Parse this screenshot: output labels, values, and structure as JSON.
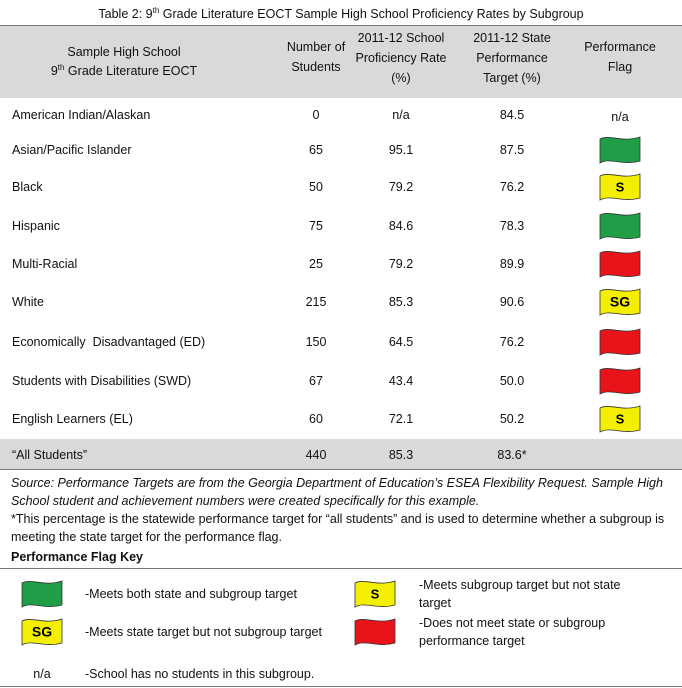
{
  "table": {
    "title": {
      "pre": "Table 2: 9",
      "sup": "th",
      "post": " Grade Literature EOCT Sample High School Proficiency Rates by Subgroup"
    },
    "header": [
      {
        "line1": "Sample High School",
        "line2_pre": "9",
        "line2_sup": "th",
        "line2_post": " Grade Literature EOCT"
      },
      [
        "Number of",
        "Students"
      ],
      [
        "2011-12 School",
        "Proficiency Rate",
        "(%)"
      ],
      [
        "2011-12 State",
        "Performance",
        "Target (%)"
      ],
      [
        "Performance",
        "Flag"
      ]
    ],
    "rows": [
      {
        "group": "American Indian/Alaskan",
        "students": "0",
        "rate": "n/a",
        "target": "84.5",
        "flag_text": "n/a"
      },
      {
        "group": "Asian/Pacific Islander",
        "students": "65",
        "rate": "95.1",
        "target": "87.5",
        "flag": {
          "color": "#1f9e47"
        }
      },
      {
        "group": "Black",
        "students": "50",
        "rate": "79.2",
        "target": "76.2",
        "flag": {
          "color": "#f4ee00",
          "label": "S"
        }
      },
      {
        "group": "Hispanic",
        "students": "75",
        "rate": "84.6",
        "target": "78.3",
        "flag": {
          "color": "#1f9e47"
        }
      },
      {
        "group": "Multi-Racial",
        "students": "25",
        "rate": "79.2",
        "target": "89.9",
        "flag": {
          "color": "#e8141a"
        }
      },
      {
        "group": "White",
        "students": "215",
        "rate": "85.3",
        "target": "90.6",
        "flag": {
          "color": "#f4ee00",
          "label": "SG"
        }
      },
      {
        "group": "Economically  Disadvantaged (ED)",
        "students": "150",
        "rate": "64.5",
        "target": "76.2",
        "flag": {
          "color": "#e8141a"
        }
      },
      {
        "group": "Students with Disabilities (SWD)",
        "students": "67",
        "rate": "43.4",
        "target": "50.0",
        "flag": {
          "color": "#e8141a"
        }
      },
      {
        "group": "English Learners (EL)",
        "students": "60",
        "rate": "72.1",
        "target": "50.2",
        "flag": {
          "color": "#f4ee00",
          "label": "S"
        }
      },
      {
        "group": "“All Students”",
        "students": "440",
        "rate": "85.3",
        "target": "83.6*"
      }
    ]
  },
  "notes": {
    "source": "Source: Performance Targets are from the Georgia Department of Education’s ESEA Flexibility Request. Sample High School student and achievement numbers were created specifically for this example.",
    "asterisk": "*This percentage is the statewide performance target for “all students” and is used to determine whether a subgroup is meeting the state target for the performance flag."
  },
  "key": {
    "title": "Performance Flag Key",
    "items": [
      {
        "flag": {
          "color": "#1f9e47"
        },
        "text": "-Meets both state and subgroup target"
      },
      {
        "flag": {
          "color": "#f4ee00",
          "label": "S"
        },
        "text": "-Meets subgroup target but not state target"
      },
      {
        "flag": {
          "color": "#f4ee00",
          "label": "SG"
        },
        "text": "-Meets state target but not subgroup target"
      },
      {
        "flag": {
          "color": "#e8141a"
        },
        "text": "-Does not meet state or subgroup performance target"
      },
      {
        "flag_text": "n/a",
        "text": "-School has no students in this subgroup."
      }
    ]
  }
}
